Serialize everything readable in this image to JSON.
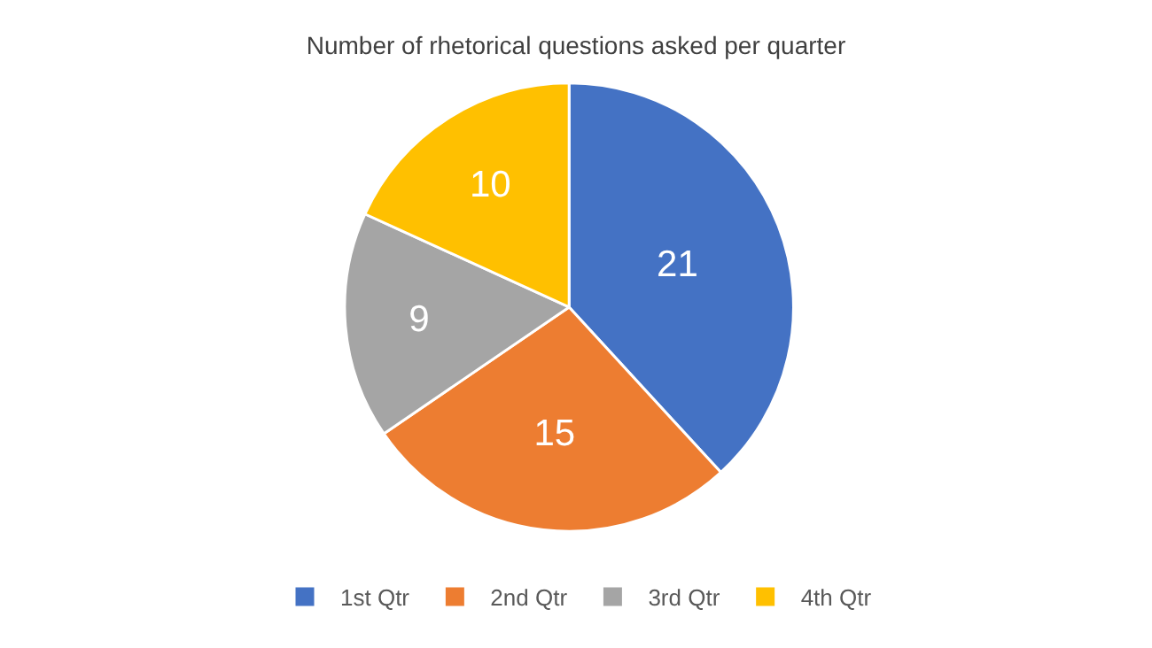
{
  "chart_data": {
    "type": "pie",
    "title": "Number of rhetorical questions asked per quarter",
    "categories": [
      "1st Qtr",
      "2nd Qtr",
      "3rd Qtr",
      "4th Qtr"
    ],
    "values": [
      21,
      15,
      9,
      10
    ],
    "colors": [
      "#4472c4",
      "#ed7d31",
      "#a5a5a5",
      "#ffc000"
    ],
    "data_labels": true,
    "legend": "bottom"
  }
}
